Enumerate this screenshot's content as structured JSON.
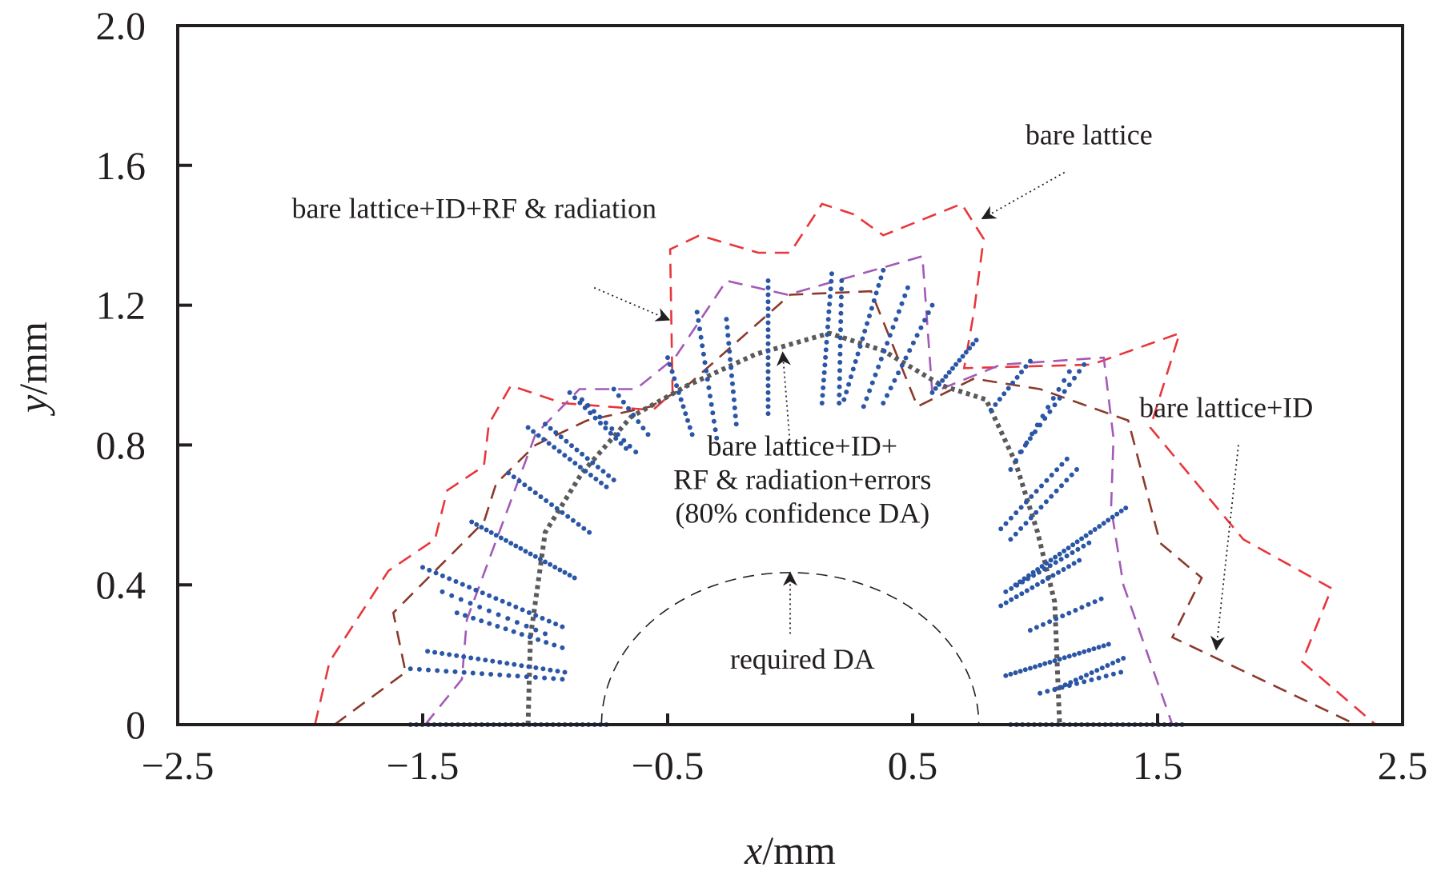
{
  "chart_data": {
    "type": "scatter",
    "title": "",
    "xlabel": "x/mm",
    "ylabel": "y/mm",
    "xlim": [
      -2.5,
      2.5
    ],
    "ylim": [
      0,
      2.0
    ],
    "grid": false,
    "x_ticks": [
      {
        "value": -2.5,
        "label": "−2.5"
      },
      {
        "value": -1.5,
        "label": "−1.5"
      },
      {
        "value": -0.5,
        "label": "−0.5"
      },
      {
        "value": 0.5,
        "label": "0.5"
      },
      {
        "value": 1.5,
        "label": "1.5"
      },
      {
        "value": 2.5,
        "label": "2.5"
      }
    ],
    "y_ticks": [
      {
        "value": 0,
        "label": "0"
      },
      {
        "value": 0.4,
        "label": "0.4"
      },
      {
        "value": 0.8,
        "label": "0.8"
      },
      {
        "value": 1.2,
        "label": "1.2"
      },
      {
        "value": 1.6,
        "label": "1.6"
      },
      {
        "value": 2.0,
        "label": "2.0"
      }
    ],
    "series": [
      {
        "name": "bare lattice",
        "style": "dashed",
        "color": "#e8363b",
        "points": [
          [
            -1.94,
            0
          ],
          [
            -1.88,
            0.18
          ],
          [
            -1.64,
            0.44
          ],
          [
            -1.45,
            0.53
          ],
          [
            -1.4,
            0.67
          ],
          [
            -1.25,
            0.74
          ],
          [
            -1.23,
            0.86
          ],
          [
            -1.14,
            0.97
          ],
          [
            -0.93,
            0.92
          ],
          [
            -0.56,
            0.9
          ],
          [
            -0.48,
            0.95
          ],
          [
            -0.49,
            1.36
          ],
          [
            -0.37,
            1.4
          ],
          [
            -0.13,
            1.35
          ],
          [
            0.0,
            1.35
          ],
          [
            0.13,
            1.49
          ],
          [
            0.26,
            1.46
          ],
          [
            0.38,
            1.4
          ],
          [
            0.7,
            1.49
          ],
          [
            0.79,
            1.39
          ],
          [
            0.75,
            1.18
          ],
          [
            0.71,
            1.02
          ],
          [
            1.23,
            1.03
          ],
          [
            1.59,
            1.12
          ],
          [
            1.47,
            0.85
          ],
          [
            1.85,
            0.53
          ],
          [
            2.21,
            0.39
          ],
          [
            2.09,
            0.18
          ],
          [
            2.39,
            0
          ]
        ]
      },
      {
        "name": "bare lattice+ID",
        "style": "dashed",
        "color": "#8b3a2b",
        "points": [
          [
            -1.86,
            0
          ],
          [
            -1.57,
            0.15
          ],
          [
            -1.62,
            0.32
          ],
          [
            -1.25,
            0.58
          ],
          [
            -1.2,
            0.69
          ],
          [
            -1.04,
            0.8
          ],
          [
            -0.83,
            0.87
          ],
          [
            -0.57,
            0.91
          ],
          [
            -0.42,
            0.97
          ],
          [
            0.0,
            1.23
          ],
          [
            0.33,
            1.24
          ],
          [
            0.52,
            0.91
          ],
          [
            0.75,
            0.99
          ],
          [
            1.02,
            0.96
          ],
          [
            1.38,
            0.87
          ],
          [
            1.51,
            0.52
          ],
          [
            1.68,
            0.42
          ],
          [
            1.56,
            0.25
          ],
          [
            2.31,
            0
          ]
        ]
      },
      {
        "name": "bare lattice+ID+RF & radiation",
        "style": "dashed",
        "color": "#a25ab7",
        "points": [
          [
            -1.49,
            0
          ],
          [
            -1.34,
            0.13
          ],
          [
            -1.32,
            0.3
          ],
          [
            -1.04,
            0.83
          ],
          [
            -0.86,
            0.96
          ],
          [
            -0.63,
            0.96
          ],
          [
            -0.47,
            1.05
          ],
          [
            -0.26,
            1.27
          ],
          [
            -0.01,
            1.23
          ],
          [
            0.54,
            1.34
          ],
          [
            0.58,
            0.95
          ],
          [
            0.86,
            1.03
          ],
          [
            1.28,
            1.05
          ],
          [
            1.32,
            0.82
          ],
          [
            1.31,
            0.62
          ],
          [
            1.36,
            0.4
          ],
          [
            1.56,
            0
          ]
        ]
      },
      {
        "name": "bare lattice+ID+RF & radiation+errors (80% confidence DA)",
        "style": "dotted",
        "color": "#5a5a5a",
        "points": [
          [
            -1.07,
            0
          ],
          [
            -1.06,
            0.25
          ],
          [
            -1.0,
            0.55
          ],
          [
            -0.85,
            0.72
          ],
          [
            -0.65,
            0.88
          ],
          [
            -0.42,
            0.97
          ],
          [
            -0.14,
            1.06
          ],
          [
            0.16,
            1.12
          ],
          [
            0.38,
            1.07
          ],
          [
            0.62,
            0.97
          ],
          [
            0.8,
            0.93
          ],
          [
            0.92,
            0.75
          ],
          [
            1.01,
            0.55
          ],
          [
            1.08,
            0.35
          ],
          [
            1.1,
            0
          ]
        ]
      },
      {
        "name": "required DA",
        "style": "dashed-ellipse",
        "color": "#231f20",
        "semi_axis_x": 0.77,
        "semi_axis_y": 0.435
      }
    ],
    "scatter": {
      "name": "tracked particles",
      "color": "#2a56a5",
      "rays": [
        {
          "from": [
            -1.55,
            0.16
          ],
          "to": [
            -0.93,
            0.13
          ],
          "n": 18
        },
        {
          "from": [
            -1.48,
            0.21
          ],
          "to": [
            -0.92,
            0.15
          ],
          "n": 20
        },
        {
          "from": [
            -1.36,
            0.32
          ],
          "to": [
            -0.93,
            0.22
          ],
          "n": 14
        },
        {
          "from": [
            -1.5,
            0.45
          ],
          "to": [
            -0.93,
            0.28
          ],
          "n": 22
        },
        {
          "from": [
            -1.42,
            0.38
          ],
          "to": [
            -1.0,
            0.26
          ],
          "n": 12
        },
        {
          "from": [
            -1.3,
            0.58
          ],
          "to": [
            -0.88,
            0.42
          ],
          "n": 22
        },
        {
          "from": [
            -1.15,
            0.72
          ],
          "to": [
            -0.82,
            0.55
          ],
          "n": 16
        },
        {
          "from": [
            -1.07,
            0.85
          ],
          "to": [
            -0.75,
            0.68
          ],
          "n": 16
        },
        {
          "from": [
            -1.0,
            0.86
          ],
          "to": [
            -0.72,
            0.7
          ],
          "n": 14
        },
        {
          "from": [
            -0.9,
            0.95
          ],
          "to": [
            -0.67,
            0.79
          ],
          "n": 12
        },
        {
          "from": [
            -0.85,
            0.93
          ],
          "to": [
            -0.63,
            0.78
          ],
          "n": 10
        },
        {
          "from": [
            -0.72,
            0.96
          ],
          "to": [
            -0.58,
            0.83
          ],
          "n": 8
        },
        {
          "from": [
            -0.5,
            1.05
          ],
          "to": [
            -0.4,
            0.83
          ],
          "n": 12
        },
        {
          "from": [
            -0.38,
            1.18
          ],
          "to": [
            -0.3,
            0.82
          ],
          "n": 16
        },
        {
          "from": [
            -0.26,
            1.16
          ],
          "to": [
            -0.22,
            0.86
          ],
          "n": 14
        },
        {
          "from": [
            -0.09,
            1.27
          ],
          "to": [
            -0.09,
            0.89
          ],
          "n": 20
        },
        {
          "from": [
            0.17,
            1.29
          ],
          "to": [
            0.13,
            0.92
          ],
          "n": 18
        },
        {
          "from": [
            0.21,
            1.27
          ],
          "to": [
            0.2,
            0.92
          ],
          "n": 16
        },
        {
          "from": [
            0.38,
            1.3
          ],
          "to": [
            0.22,
            0.93
          ],
          "n": 18
        },
        {
          "from": [
            0.48,
            1.25
          ],
          "to": [
            0.3,
            0.91
          ],
          "n": 16
        },
        {
          "from": [
            0.58,
            1.2
          ],
          "to": [
            0.38,
            0.92
          ],
          "n": 14
        },
        {
          "from": [
            0.76,
            1.1
          ],
          "to": [
            0.58,
            0.95
          ],
          "n": 14
        },
        {
          "from": [
            0.98,
            1.04
          ],
          "to": [
            0.82,
            0.9
          ],
          "n": 10
        },
        {
          "from": [
            1.2,
            1.03
          ],
          "to": [
            0.94,
            0.78
          ],
          "n": 14
        },
        {
          "from": [
            1.14,
            1.01
          ],
          "to": [
            0.9,
            0.73
          ],
          "n": 12
        },
        {
          "from": [
            1.13,
            0.76
          ],
          "to": [
            0.86,
            0.56
          ],
          "n": 14
        },
        {
          "from": [
            1.17,
            0.73
          ],
          "to": [
            0.9,
            0.53
          ],
          "n": 14
        },
        {
          "from": [
            1.37,
            0.62
          ],
          "to": [
            0.92,
            0.4
          ],
          "n": 26
        },
        {
          "from": [
            1.22,
            0.52
          ],
          "to": [
            0.88,
            0.38
          ],
          "n": 16
        },
        {
          "from": [
            1.18,
            0.47
          ],
          "to": [
            0.86,
            0.34
          ],
          "n": 16
        },
        {
          "from": [
            1.27,
            0.36
          ],
          "to": [
            0.98,
            0.27
          ],
          "n": 12
        },
        {
          "from": [
            1.3,
            0.23
          ],
          "to": [
            0.88,
            0.14
          ],
          "n": 22
        },
        {
          "from": [
            1.36,
            0.19
          ],
          "to": [
            1.08,
            0.1
          ],
          "n": 14
        },
        {
          "from": [
            1.35,
            0.15
          ],
          "to": [
            1.02,
            0.09
          ],
          "n": 12
        },
        {
          "from": [
            -1.55,
            0
          ],
          "to": [
            -0.75,
            0
          ],
          "n": 34
        },
        {
          "from": [
            0.9,
            0
          ],
          "to": [
            1.6,
            0
          ],
          "n": 30
        }
      ]
    },
    "annotations": [
      {
        "text": "bare lattice",
        "x": 1.22,
        "y": 1.66,
        "arrow_from": [
          1.12,
          1.58
        ],
        "arrow_to": [
          0.79,
          1.45
        ]
      },
      {
        "text": "bare lattice+ID+RF & radiation",
        "x": -1.29,
        "y": 1.45,
        "arrow_from": [
          -0.8,
          1.25
        ],
        "arrow_to": [
          -0.5,
          1.16
        ]
      },
      {
        "text": "bare lattice+ID",
        "x": 1.78,
        "y": 0.88,
        "arrow_from": [
          1.83,
          0.8
        ],
        "arrow_to": [
          1.74,
          0.22
        ]
      },
      {
        "text_lines": [
          "bare lattice+ID+",
          "RF & radiation+errors",
          "(80% confidence DA)"
        ],
        "x": 0.05,
        "y": 0.77,
        "arrow_from": [
          0.0,
          0.8
        ],
        "arrow_to": [
          -0.03,
          1.06
        ]
      },
      {
        "text": "required DA",
        "x": 0.05,
        "y": 0.16,
        "arrow_from": [
          0.0,
          0.26
        ],
        "arrow_to": [
          0.0,
          0.43
        ]
      }
    ]
  }
}
